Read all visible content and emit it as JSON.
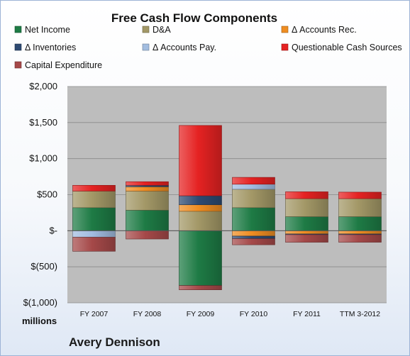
{
  "chart_data": {
    "type": "bar",
    "stacked": true,
    "title": "Free Cash Flow Components",
    "unit_label": "millions",
    "company": "Avery Dennison",
    "categories": [
      "FY 2007",
      "FY 2008",
      "FY 2009",
      "FY 2010",
      "FY 2011",
      "TTM 3-2012"
    ],
    "ylim": [
      -1000,
      2000
    ],
    "yticks": [
      {
        "value": 2000,
        "label": "$2,000"
      },
      {
        "value": 1500,
        "label": "$1,500"
      },
      {
        "value": 1000,
        "label": "$1,000"
      },
      {
        "value": 500,
        "label": "$500"
      },
      {
        "value": 0,
        "label": "$-"
      },
      {
        "value": -500,
        "label": "$(500)"
      },
      {
        "value": -1000,
        "label": "$(1,000)"
      }
    ],
    "grid": true,
    "legend_position": "top",
    "series": [
      {
        "name": "Net Income",
        "color": "#1e7b45",
        "values": [
          320,
          285,
          -760,
          320,
          195,
          195
        ]
      },
      {
        "name": "D&A",
        "color": "#a39867",
        "values": [
          230,
          265,
          270,
          255,
          250,
          250
        ]
      },
      {
        "name": "Δ Accounts Rec.",
        "color": "#ef8d22",
        "values": [
          0,
          60,
          90,
          -75,
          -45,
          -45
        ]
      },
      {
        "name": "Δ Inventories",
        "color": "#2d4a72",
        "values": [
          0,
          20,
          125,
          -35,
          -10,
          -10
        ]
      },
      {
        "name": "Δ Accounts Pay.",
        "color": "#a2bde0",
        "values": [
          -90,
          0,
          0,
          70,
          0,
          0
        ]
      },
      {
        "name": "Questionable Cash Sources",
        "color": "#e52222",
        "values": [
          80,
          50,
          975,
          95,
          95,
          90
        ]
      },
      {
        "name": "Capital Expenditure",
        "color": "#a54949",
        "values": [
          -195,
          -115,
          -60,
          -85,
          -105,
          -105
        ]
      }
    ]
  }
}
